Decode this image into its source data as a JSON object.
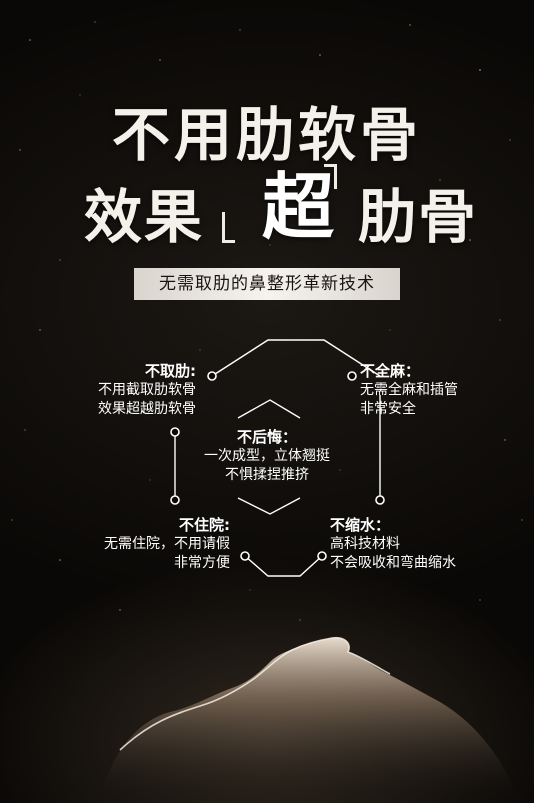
{
  "title": {
    "line1": "不用肋软骨",
    "line2_start": "效果",
    "line2_highlight": "超",
    "line2_end": "肋骨"
  },
  "subtitle": "无需取肋的鼻整形革新技术",
  "features": {
    "top_left": {
      "heading": "不取肋:",
      "lines": [
        "不用截取肋软骨",
        "效果超越肋软骨"
      ]
    },
    "top_right": {
      "heading": "不全麻：",
      "lines": [
        "无需全麻和插管",
        "非常安全"
      ]
    },
    "center": {
      "heading": "不后悔：",
      "lines": [
        "一次成型，立体翘挺",
        "不惧揉捏推挤"
      ]
    },
    "bottom_left": {
      "heading": "不住院:",
      "lines": [
        "无需住院，不用请假",
        "非常方便"
      ]
    },
    "bottom_right": {
      "heading": "不缩水：",
      "lines": [
        "高科技材料",
        "不会吸收和弯曲缩水"
      ]
    }
  },
  "colors": {
    "background": "#0b0907",
    "text": "#ffffff",
    "subtitle_bg": "#f0ece6",
    "subtitle_text": "#1a1410"
  }
}
